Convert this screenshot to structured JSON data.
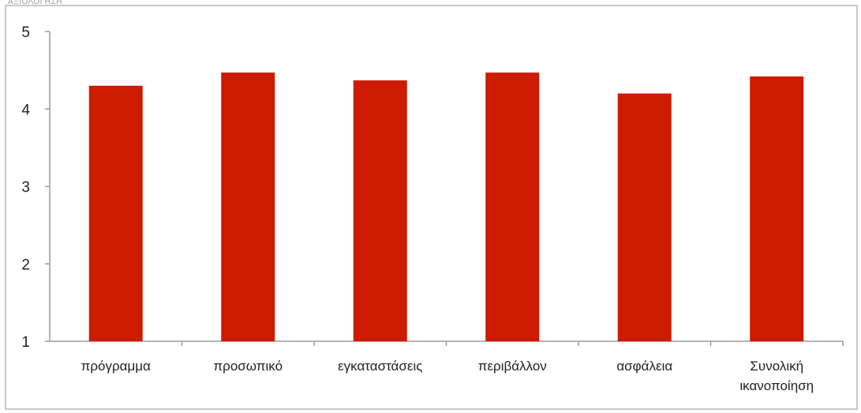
{
  "header_text": "ΑΞΙΟΛΟΓΗΣΗ",
  "chart_data": {
    "type": "bar",
    "categories": [
      [
        "πρόγραμμα"
      ],
      [
        "προσωπικό"
      ],
      [
        "εγκαταστάσεις"
      ],
      [
        "περιβάλλον"
      ],
      [
        "ασφάλεια"
      ],
      [
        "Συνολική",
        "ικανοποίηση"
      ]
    ],
    "values": [
      4.3,
      4.47,
      4.37,
      4.47,
      4.2,
      4.42
    ],
    "title": "",
    "xlabel": "",
    "ylabel": "",
    "ylim": [
      1,
      5
    ],
    "yticks": [
      1,
      2,
      3,
      4,
      5
    ],
    "grid": false,
    "bar_color": "#cc1b00",
    "axis_color": "#9a9a9a"
  }
}
